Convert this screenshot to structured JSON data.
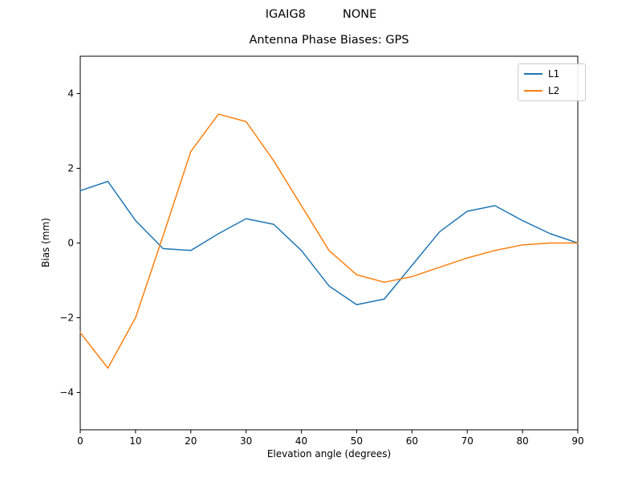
{
  "suptitle": "IGAIG8          NONE",
  "chart_data": {
    "type": "line",
    "title": "Antenna Phase Biases: GPS",
    "xlabel": "Elevation angle (degrees)",
    "ylabel": "Bias (mm)",
    "xlim": [
      0,
      90
    ],
    "ylim": [
      -5,
      5
    ],
    "xticks": [
      0,
      10,
      20,
      30,
      40,
      50,
      60,
      70,
      80,
      90
    ],
    "yticks": [
      -4,
      -2,
      0,
      2,
      4
    ],
    "grid": false,
    "legend_position": "upper right",
    "x": [
      0,
      5,
      10,
      15,
      20,
      25,
      30,
      35,
      40,
      45,
      50,
      55,
      60,
      65,
      70,
      75,
      80,
      85,
      90
    ],
    "series": [
      {
        "name": "L1",
        "color": "#1f77b4",
        "values": [
          1.4,
          1.65,
          0.6,
          -0.15,
          -0.2,
          0.25,
          0.65,
          0.5,
          -0.2,
          -1.15,
          -1.65,
          -1.5,
          -0.6,
          0.3,
          0.85,
          1.0,
          0.6,
          0.25,
          0.0
        ]
      },
      {
        "name": "L2",
        "color": "#ff7f0e",
        "values": [
          -2.4,
          -3.35,
          -2.0,
          0.2,
          2.45,
          3.45,
          3.25,
          2.2,
          1.0,
          -0.2,
          -0.85,
          -1.05,
          -0.9,
          -0.65,
          -0.4,
          -0.2,
          -0.05,
          0.0,
          0.0
        ]
      }
    ]
  }
}
